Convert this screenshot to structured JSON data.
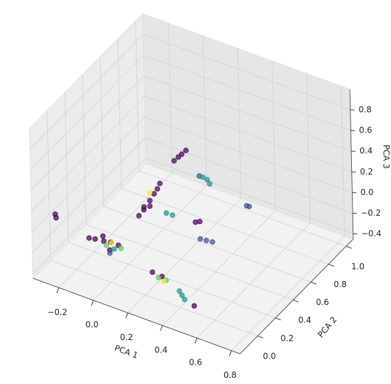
{
  "chart_data": {
    "type": "scatter3d",
    "xlabel": "PCA 1",
    "ylabel": "PCA 2",
    "zlabel": "PCA 3",
    "xlim": [
      -0.35,
      0.85
    ],
    "ylim": [
      -0.2,
      1.08
    ],
    "zlim": [
      -0.45,
      1.0
    ],
    "xticks": [
      {
        "value": -0.2,
        "label": "−0.2"
      },
      {
        "value": 0,
        "label": "0.0"
      },
      0.2,
      0.4,
      0.6,
      0.8
    ],
    "yticks": [
      {
        "value": 0,
        "label": "0.0"
      },
      0.2,
      0.4,
      0.6,
      0.8,
      {
        "value": 1,
        "label": "1.0"
      }
    ],
    "zticks": [
      {
        "value": -0.4,
        "label": "−0.4"
      },
      {
        "value": -0.2,
        "label": "−0.2"
      },
      {
        "value": 0,
        "label": "0.0"
      },
      0.2,
      0.4,
      0.6,
      0.8
    ],
    "grid": true,
    "series": [
      {
        "color": "#440154",
        "x": [
          -0.05,
          0.0,
          0.03,
          -0.08,
          0.08,
          0.05,
          -0.02,
          -0.03,
          0.0,
          0.02,
          0.04,
          0.05,
          -0.05,
          0.01,
          -0.01,
          0.06,
          0.04,
          0.02,
          0.08,
          0.2,
          0.22,
          0.52,
          -0.28,
          -0.27,
          0.28,
          0.33
        ],
        "y": [
          -0.07,
          -0.07,
          -0.05,
          -0.08,
          -0.06,
          -0.1,
          -0.04,
          0.44,
          0.45,
          0.46,
          0.46,
          0.47,
          0.42,
          0.43,
          0.4,
          0.7,
          0.7,
          0.69,
          0.71,
          0.57,
          0.58,
          -0.07,
          -0.07,
          -0.08,
          -0.07,
          -0.06
        ],
        "z": [
          0.0,
          0.01,
          0.0,
          0.0,
          0.01,
          -0.02,
          0.02,
          -0.12,
          -0.05,
          0.02,
          0.08,
          0.13,
          -0.2,
          -0.08,
          -0.1,
          0.22,
          0.18,
          0.14,
          0.26,
          -0.24,
          -0.23,
          -0.3,
          0.1,
          0.08,
          -0.12,
          -0.14
        ]
      },
      {
        "color": "#3b528b",
        "x": [
          0.33,
          0.3,
          0.36,
          0.3,
          0.31,
          0.16,
          0.05
        ],
        "y": [
          0.44,
          0.43,
          0.45,
          0.95,
          0.96,
          0.7,
          -0.1
        ],
        "z": [
          -0.225,
          -0.22,
          -0.23,
          -0.35,
          -0.36,
          0.07,
          -0.05
        ]
      },
      {
        "color": "#21918c",
        "x": [
          0.18,
          0.2,
          0.22,
          0.1,
          0.13,
          0.45,
          0.47,
          0.43,
          0.06
        ],
        "y": [
          0.7,
          0.71,
          0.7,
          0.44,
          0.45,
          -0.07,
          -0.08,
          -0.06,
          -0.07
        ],
        "z": [
          0.07,
          0.05,
          0.03,
          -0.1,
          -0.11,
          -0.24,
          -0.26,
          -0.22,
          -0.03
        ]
      },
      {
        "color": "#5ec962",
        "x": [
          0.02,
          0.1,
          0.32,
          0.36
        ],
        "y": [
          -0.08,
          -0.07,
          -0.08,
          -0.07
        ],
        "z": [
          -0.01,
          0.0,
          -0.14,
          -0.15
        ]
      },
      {
        "color": "#fde725",
        "x": [
          0.35,
          0.0,
          0.04
        ],
        "y": [
          -0.08,
          0.45,
          -0.06
        ],
        "z": [
          -0.16,
          0.03,
          0.01
        ]
      }
    ]
  }
}
